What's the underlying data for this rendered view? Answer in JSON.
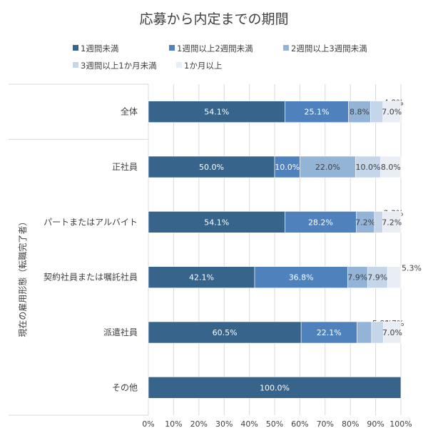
{
  "chart_data": {
    "type": "bar",
    "orientation": "horizontal",
    "stacked": "percent",
    "title": "応募から内定までの期間",
    "ylabel": "現在の雇用形態（転職完了者）",
    "xlabel": "",
    "xlim": [
      0,
      100
    ],
    "x_ticks": [
      "0%",
      "10%",
      "20%",
      "30%",
      "40%",
      "50%",
      "60%",
      "70%",
      "80%",
      "90%",
      "100%"
    ],
    "categories": [
      "全体",
      "正社員",
      "パートまたはアルバイト",
      "契約社員または嘱託社員",
      "派遣社員",
      "その他"
    ],
    "legend_position": "top",
    "series": [
      {
        "name": "1週間未満",
        "color": "#36648b",
        "values": [
          54.1,
          50.0,
          54.1,
          42.1,
          60.5,
          100.0
        ],
        "labels": [
          "54.1%",
          "50.0%",
          "54.1%",
          "42.1%",
          "60.5%",
          "100.0%"
        ]
      },
      {
        "name": "1週間以上2週間未満",
        "color": "#4f81bd",
        "values": [
          25.1,
          10.0,
          28.2,
          36.8,
          22.1,
          0
        ],
        "labels": [
          "25.1%",
          "10.0%",
          "28.2%",
          "36.8%",
          "22.1%",
          ""
        ]
      },
      {
        "name": "2週間以上3週間未満",
        "color": "#93b3d7",
        "values": [
          8.8,
          22.0,
          7.2,
          7.9,
          5.8,
          0
        ],
        "labels": [
          "8.8%",
          "22.0%",
          "7.2%",
          "7.9%",
          "5.8%",
          ""
        ]
      },
      {
        "name": "3週間以上1か月未満",
        "color": "#c5d5ea",
        "values": [
          4.9,
          10.0,
          3.3,
          7.9,
          4.7,
          0
        ],
        "labels": [
          "4.9%",
          "10.0%",
          "3.3%",
          "7.9%",
          "4.7%",
          ""
        ]
      },
      {
        "name": "1か月以上",
        "color": "#e9eef5",
        "values": [
          7.0,
          8.0,
          7.2,
          5.3,
          7.0,
          0
        ],
        "labels": [
          "7.0%",
          "8.0%",
          "7.2%",
          "5.3%",
          "7.0%",
          ""
        ]
      }
    ]
  }
}
